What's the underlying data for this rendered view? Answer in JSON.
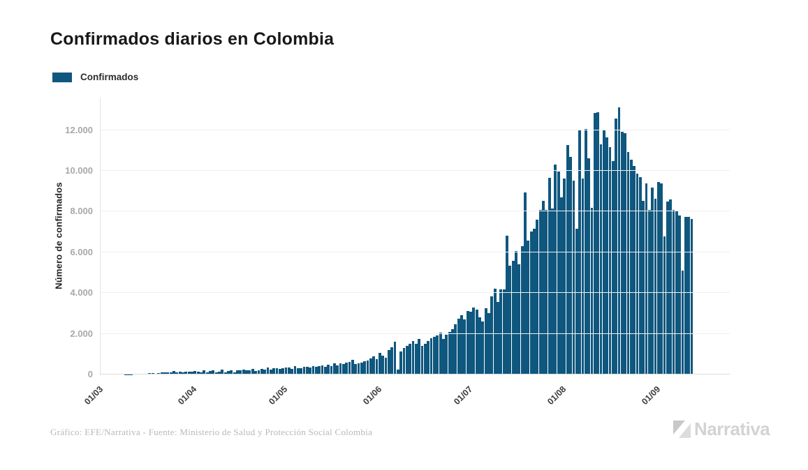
{
  "title": "Confirmados diarios en Colombia",
  "legend": {
    "label": "Confirmados",
    "color": "#0F577E"
  },
  "y_axis": {
    "title": "Número de confirmados",
    "ticks": [
      "0",
      "2.000",
      "4.000",
      "6.000",
      "8.000",
      "10.000",
      "12.000"
    ],
    "tick_values": [
      0,
      2000,
      4000,
      6000,
      8000,
      10000,
      12000
    ],
    "max": 13600
  },
  "x_axis": {
    "ticks": [
      {
        "label": "01/03",
        "slot": 0
      },
      {
        "label": "01/04",
        "slot": 31
      },
      {
        "label": "01/05",
        "slot": 61
      },
      {
        "label": "01/06",
        "slot": 92
      },
      {
        "label": "01/07",
        "slot": 122
      },
      {
        "label": "01/08",
        "slot": 153
      },
      {
        "label": "01/09",
        "slot": 184
      }
    ],
    "total_slots": 208
  },
  "chart_data": {
    "type": "bar",
    "title": "Confirmados diarios en Colombia",
    "ylabel": "Número de confirmados",
    "series_name": "Confirmados",
    "bar_color": "#0F577E",
    "grid": "horizontal",
    "legend_position": "top-left",
    "ylim": [
      0,
      13600
    ],
    "x_start": "01/03",
    "x_end": "12/09",
    "x_step": "1 day",
    "x_tick_labels": [
      "01/03",
      "01/04",
      "01/05",
      "01/06",
      "01/07",
      "01/08",
      "01/09"
    ],
    "values": [
      0,
      0,
      0,
      0,
      0,
      1,
      2,
      1,
      4,
      9,
      16,
      23,
      19,
      33,
      45,
      34,
      57,
      65,
      48,
      71,
      93,
      92,
      110,
      94,
      159,
      104,
      138,
      112,
      146,
      130,
      154,
      164,
      130,
      112,
      190,
      107,
      179,
      196,
      90,
      123,
      228,
      112,
      167,
      191,
      101,
      196,
      209,
      228,
      215,
      211,
      278,
      180,
      193,
      286,
      228,
      341,
      238,
      318,
      295,
      264,
      318,
      346,
      334,
      284,
      418,
      295,
      324,
      384,
      376,
      350,
      428,
      371,
      426,
      448,
      362,
      482,
      419,
      532,
      442,
      558,
      512,
      579,
      616,
      703,
      523,
      546,
      568,
      643,
      676,
      803,
      894,
      758,
      1048,
      924,
      828,
      1189,
      1322,
      1601,
      250,
      1119,
      1294,
      1404,
      1517,
      1630,
      1514,
      1745,
      1399,
      1506,
      1647,
      1772,
      1856,
      1906,
      2043,
      1759,
      1960,
      2090,
      2234,
      2469,
      2725,
      2900,
      2719,
      3115,
      3100,
      3274,
      3171,
      2795,
      2606,
      3254,
      3008,
      3832,
      4213,
      3566,
      4192,
      4163,
      6803,
      5350,
      5600,
      6060,
      5400,
      6300,
      8934,
      6578,
      7033,
      7168,
      7600,
      8100,
      8538,
      8100,
      9674,
      8150,
      10300,
      9960,
      8700,
      9620,
      11260,
      10700,
      9520,
      7170,
      12010,
      9620,
      12066,
      10611,
      8190,
      12830,
      12870,
      11300,
      12010,
      11660,
      11160,
      10470,
      12560,
      13120,
      11930,
      11850,
      10920,
      10540,
      10240,
      9860,
      9690,
      8540,
      9390,
      8090,
      9190,
      8650,
      9450,
      9380,
      6790,
      8490,
      8600,
      8090,
      8020,
      7810,
      5120,
      7750,
      7750,
      7650
    ]
  },
  "footer": {
    "credit": "Gráfico: EFE/Narrativa - Fuente: Ministerio de Salud y Protección Social Colombia",
    "brand": "Narrativa"
  }
}
